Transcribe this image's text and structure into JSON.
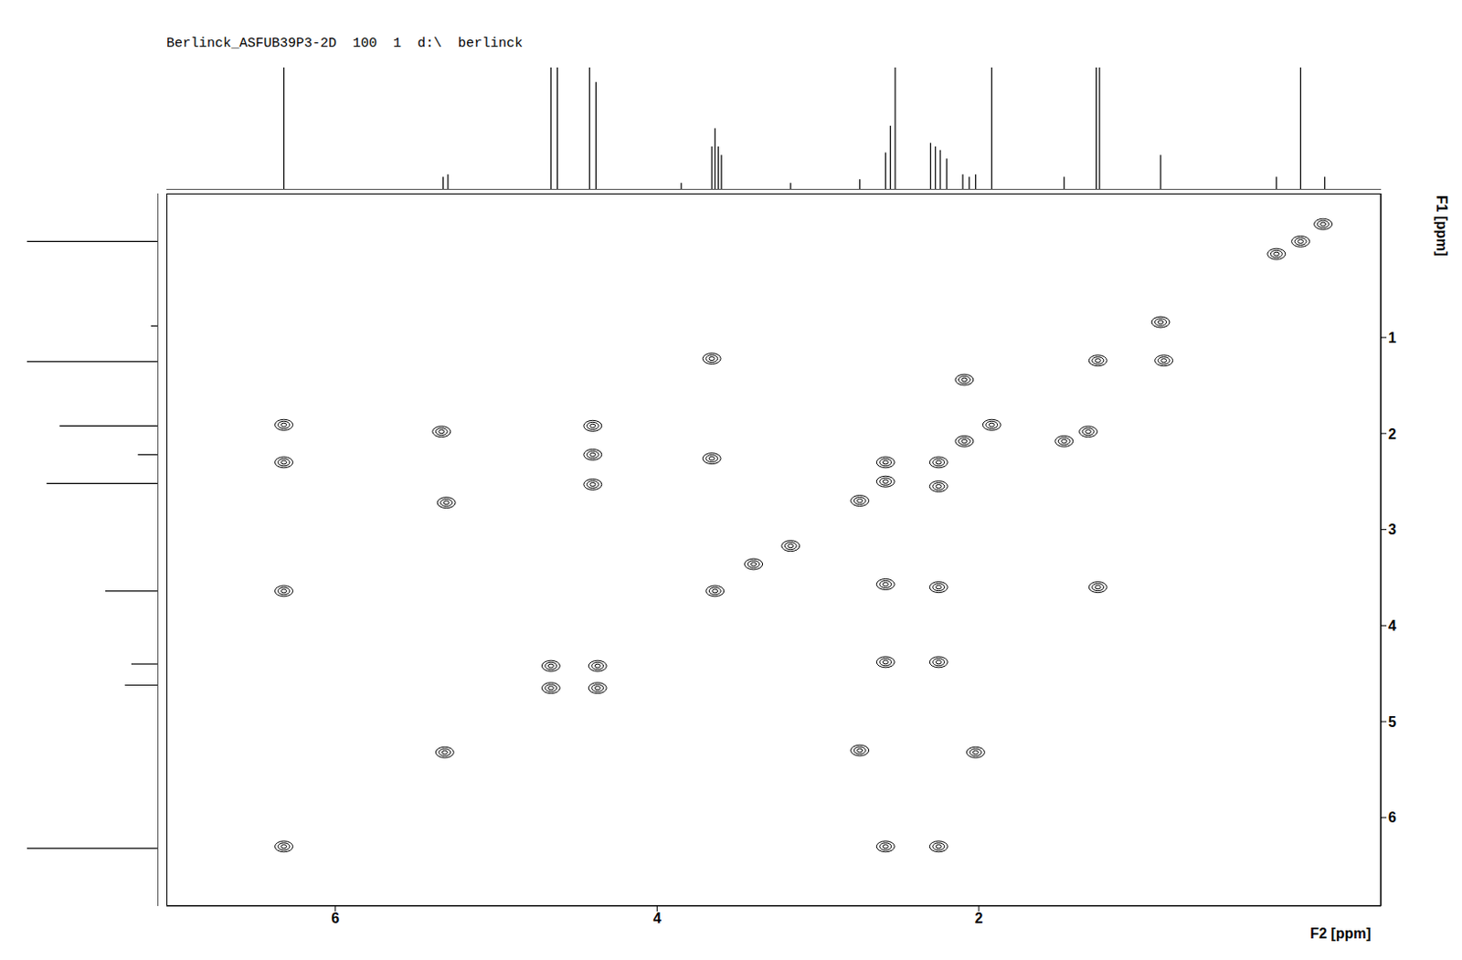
{
  "chart_data": {
    "type": "scatter",
    "title": "Berlinck_ASFUB39P3-2D  100  1  d:\\  berlinck",
    "x_label": "F2 [ppm]",
    "y_label": "F1 [ppm]",
    "marker": "contour",
    "color": "#000000",
    "xlim": [
      7.05,
      -0.5
    ],
    "ylim": [
      6.92,
      -0.5
    ],
    "xticks": [
      6,
      4,
      2
    ],
    "yticks": [
      1,
      2,
      3,
      4,
      5,
      6
    ],
    "x": [
      0.0,
      6.32,
      6.32,
      6.32,
      6.32,
      5.34,
      5.31,
      5.32,
      4.66,
      4.66,
      4.37,
      4.37,
      4.4,
      4.4,
      4.4,
      3.66,
      3.66,
      3.64,
      3.17,
      3.4,
      2.58,
      2.58,
      2.74,
      2.58,
      2.58,
      2.58,
      2.25,
      2.25,
      2.25,
      2.25,
      2.25,
      1.92,
      2.09,
      2.09,
      2.74,
      2.02,
      1.26,
      0.85,
      0.87,
      1.47,
      1.32,
      1.26,
      -0.14,
      0.15
    ],
    "values": [
      0.0,
      6.3,
      1.91,
      2.3,
      3.64,
      1.98,
      2.72,
      5.32,
      4.42,
      4.65,
      4.42,
      4.65,
      1.92,
      2.22,
      2.53,
      1.22,
      2.26,
      3.64,
      3.17,
      3.36,
      2.3,
      2.5,
      2.7,
      3.57,
      4.38,
      6.3,
      2.3,
      2.55,
      3.6,
      4.38,
      6.3,
      1.91,
      1.44,
      2.08,
      5.3,
      5.32,
      1.24,
      1.24,
      0.84,
      2.08,
      1.98,
      3.6,
      -0.18,
      0.13
    ],
    "f2_projection": {
      "ppm": [
        6.32,
        5.33,
        5.3,
        4.66,
        4.62,
        4.42,
        4.38,
        3.85,
        3.66,
        3.64,
        3.62,
        3.6,
        3.17,
        2.74,
        2.58,
        2.55,
        2.52,
        2.3,
        2.27,
        2.24,
        2.2,
        2.1,
        2.06,
        2.02,
        1.92,
        1.47,
        1.27,
        1.25,
        0.87,
        0.15,
        0.0,
        -0.15
      ],
      "intensity": [
        100,
        10,
        12,
        100,
        100,
        100,
        88,
        5,
        35,
        50,
        35,
        28,
        5,
        8,
        30,
        52,
        100,
        38,
        35,
        32,
        25,
        12,
        10,
        12,
        100,
        10,
        100,
        100,
        28,
        10,
        100,
        10
      ],
      "intensity_lim": [
        0,
        100
      ]
    },
    "f1_projection": {
      "ppm": [
        0.0,
        0.88,
        1.25,
        1.92,
        2.22,
        2.52,
        3.64,
        4.4,
        4.62,
        6.32
      ],
      "intensity": [
        100,
        5,
        100,
        75,
        15,
        85,
        40,
        20,
        25,
        100
      ],
      "intensity_lim": [
        0,
        100
      ]
    }
  }
}
